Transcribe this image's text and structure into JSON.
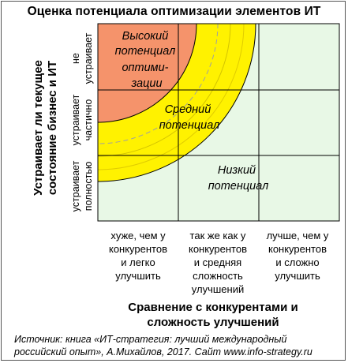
{
  "title": "Оценка потенциала оптимизации элементов ИТ",
  "y_axis": {
    "title_line1": "Устраивает ли текущее",
    "title_line2": "состояние бизнес и ИТ",
    "rows": [
      {
        "line1": "не",
        "line2": "устраивает"
      },
      {
        "line1": "устраивает",
        "line2": "частично"
      },
      {
        "line1": "устраивает",
        "line2": "полностью"
      }
    ]
  },
  "x_axis": {
    "title_line1": "Сравнение с конкурентами и",
    "title_line2": "сложность улучшений",
    "columns": [
      {
        "lines": [
          "хуже, чем у",
          "конкурентов",
          "и легко",
          "улучшить"
        ]
      },
      {
        "lines": [
          "так же как у",
          "конкурентов",
          "и средняя",
          "сложность",
          "улучшений"
        ]
      },
      {
        "lines": [
          "лучше, чем у",
          "конкурентов",
          "и сложно",
          "улучшить"
        ]
      }
    ]
  },
  "zones": {
    "high": {
      "lines": [
        "Высокий",
        "потенциал",
        "оптими-",
        "зации"
      ],
      "color": "#f5936b"
    },
    "medium": {
      "lines": [
        "Средний",
        "потенциал"
      ],
      "color": "#fff200"
    },
    "low": {
      "lines": [
        "Низкий",
        "потенциал"
      ],
      "color": "#e8f8e6"
    }
  },
  "source": {
    "line1": "Источник: книга «ИТ-стратегия: лучший международный",
    "line2": "российский опыт», А.Михайлов, 2017.   Сайт www.info-strategy.ru"
  }
}
